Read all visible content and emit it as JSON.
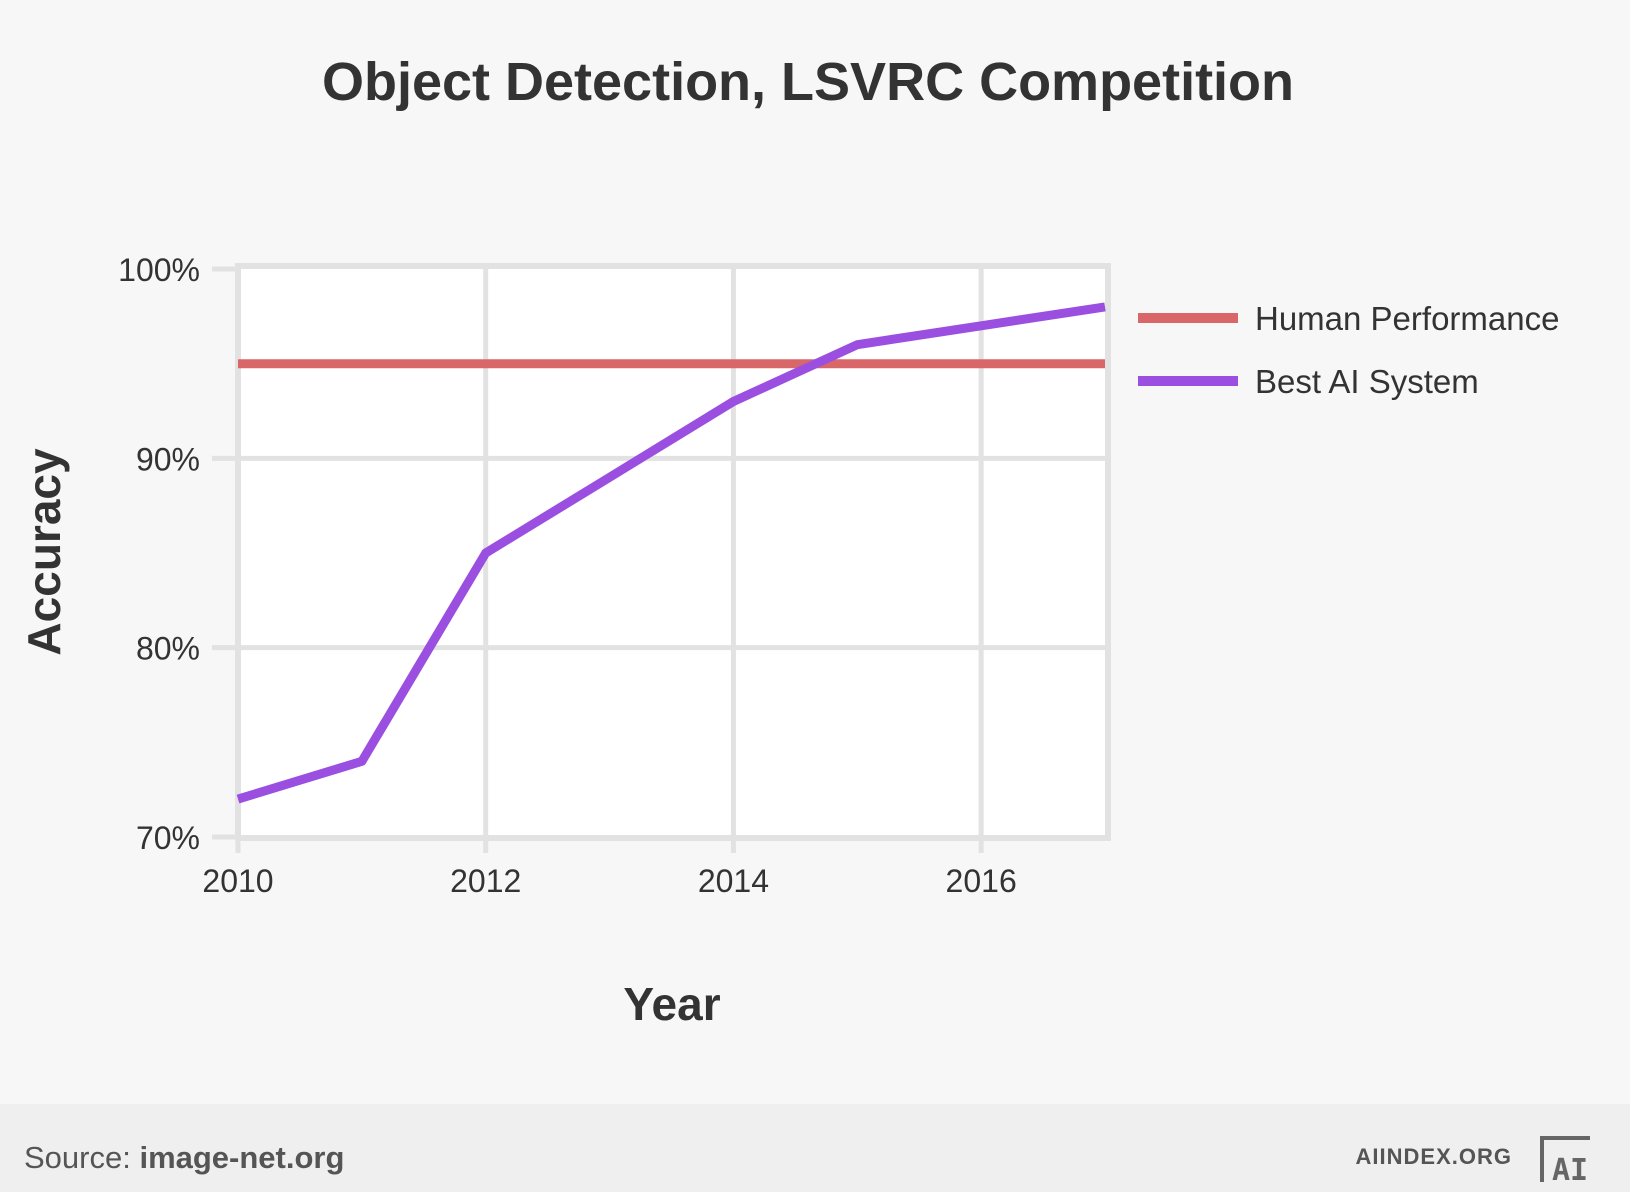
{
  "chart_data": {
    "type": "line",
    "title": "Object Detection, LSVRC Competition",
    "xlabel": "Year",
    "ylabel": "Accuracy",
    "xlim": [
      2010,
      2017
    ],
    "ylim": [
      70,
      100
    ],
    "x_ticks": [
      2010,
      2012,
      2014,
      2016
    ],
    "x_tick_labels": [
      "2010",
      "2012",
      "2014",
      "2016"
    ],
    "y_ticks": [
      70,
      80,
      90,
      100
    ],
    "y_tick_labels": [
      "70%",
      "80%",
      "90%",
      "100%"
    ],
    "grid": true,
    "legend_position": "right",
    "series": [
      {
        "name": "Human Performance",
        "color": "#d9676a",
        "x": [
          2010,
          2017
        ],
        "y": [
          95,
          95
        ]
      },
      {
        "name": "Best AI System",
        "color": "#9b4fe0",
        "x": [
          2010,
          2011,
          2012,
          2013,
          2014,
          2015,
          2016,
          2017
        ],
        "y": [
          72,
          74,
          85,
          89,
          93,
          96,
          97,
          98
        ]
      }
    ]
  },
  "footer": {
    "source_prefix": "Source: ",
    "source_site": "image-net.org",
    "brand": "AIINDEX.ORG",
    "logo_text": "AI"
  }
}
